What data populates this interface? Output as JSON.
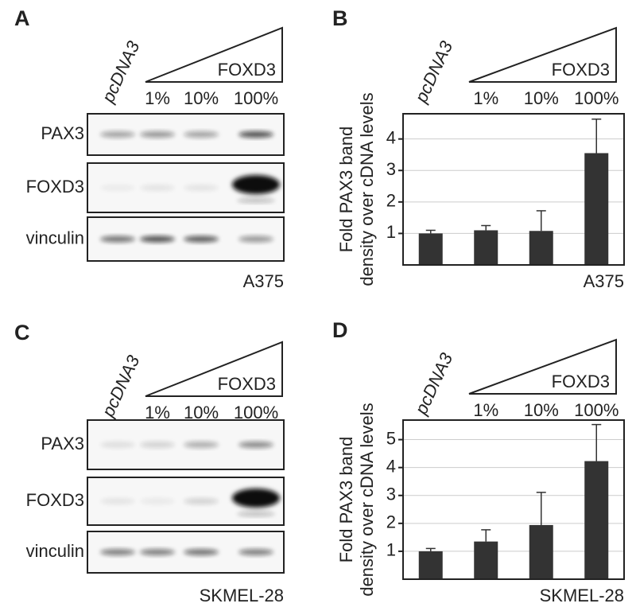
{
  "blots": [
    {
      "panel_label": "A",
      "lanes": [
        "pcDNA3",
        "1%",
        "10%",
        "100%"
      ],
      "treatment": "FOXD3",
      "rows": [
        "PAX3",
        "FOXD3",
        "vinculin"
      ],
      "cell_line": "A375"
    },
    {
      "panel_label": "C",
      "lanes": [
        "pcDNA3",
        "1%",
        "10%",
        "100%"
      ],
      "treatment": "FOXD3",
      "rows": [
        "PAX3",
        "FOXD3",
        "vinculin"
      ],
      "cell_line": "SKMEL-28"
    }
  ],
  "chart_data": [
    {
      "type": "bar",
      "panel_label": "B",
      "treatment": "FOXD3",
      "categories": [
        "pcDNA3",
        "1%",
        "10%",
        "100%"
      ],
      "y_label": [
        "Fold PAX3 band",
        "density over cDNA levels"
      ],
      "cell_line": "A375",
      "values": [
        1.0,
        1.1,
        1.08,
        3.55
      ],
      "errors": [
        0.1,
        0.15,
        0.64,
        1.08
      ],
      "color": "#333333",
      "ylim": [
        0,
        4.8
      ],
      "yticks": [
        1,
        2,
        3,
        4
      ],
      "grid": true
    },
    {
      "type": "bar",
      "panel_label": "D",
      "treatment": "FOXD3",
      "categories": [
        "pcDNA3",
        "1%",
        "10%",
        "100%"
      ],
      "y_label": [
        "Fold PAX3 band",
        "density over cDNA levels"
      ],
      "cell_line": "SKMEL-28",
      "values": [
        1.0,
        1.35,
        1.94,
        4.23
      ],
      "errors": [
        0.1,
        0.42,
        1.17,
        1.31
      ],
      "color": "#333333",
      "ylim": [
        0,
        5.7
      ],
      "yticks": [
        1,
        2,
        3,
        4,
        5
      ],
      "grid": true
    }
  ]
}
